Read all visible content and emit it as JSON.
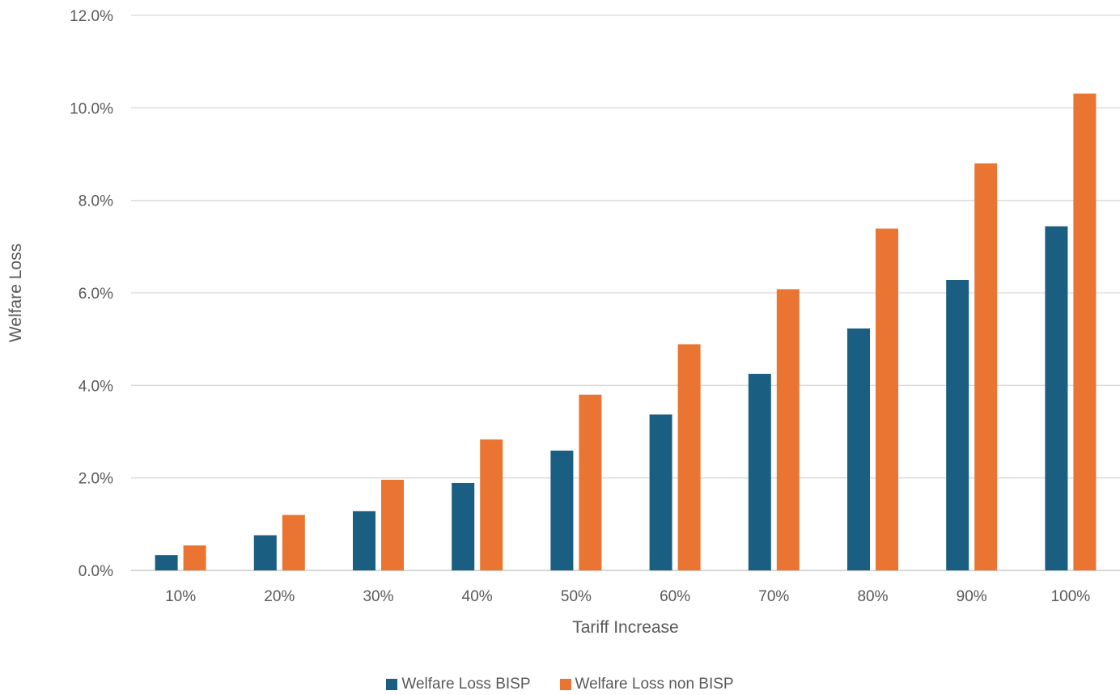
{
  "chart_data": {
    "type": "bar",
    "xlabel": "Tariff Increase",
    "ylabel": "Welfare Loss",
    "categories": [
      "10%",
      "20%",
      "30%",
      "40%",
      "50%",
      "60%",
      "70%",
      "80%",
      "90%",
      "100%"
    ],
    "series": [
      {
        "name": "Welfare Loss BISP",
        "color": "#1a5e82",
        "values": [
          0.33,
          0.76,
          1.28,
          1.89,
          2.59,
          3.37,
          4.25,
          5.23,
          6.28,
          7.44
        ]
      },
      {
        "name": "Welfare Loss non BISP",
        "color": "#ea7533",
        "values": [
          0.54,
          1.2,
          1.96,
          2.83,
          3.8,
          4.89,
          6.08,
          7.39,
          8.8,
          10.31
        ]
      }
    ],
    "ylim": [
      0,
      12
    ],
    "yticks": [
      "0.0%",
      "2.0%",
      "4.0%",
      "6.0%",
      "8.0%",
      "10.0%",
      "12.0%"
    ],
    "grid": true,
    "legend_position": "bottom"
  }
}
